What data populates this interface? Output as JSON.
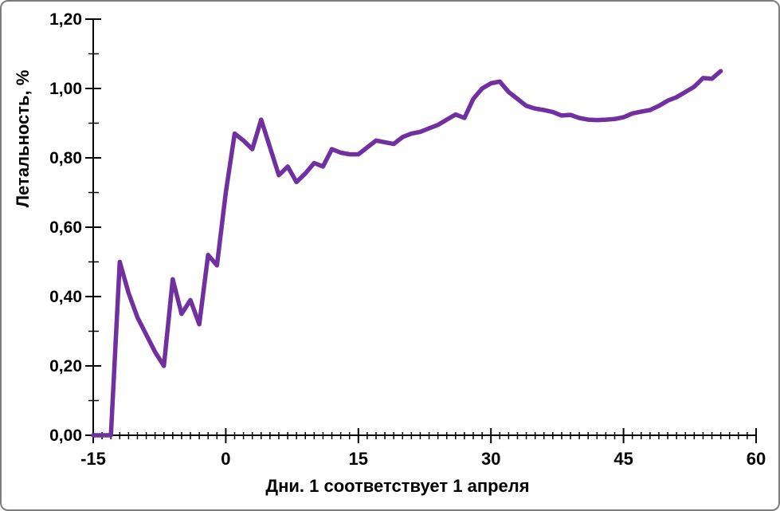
{
  "chart_data": {
    "type": "line",
    "title": "",
    "xlabel": "Дни. 1 соответствует 1 апреля",
    "ylabel": "Летальность, %",
    "series_name": "Летальность, %",
    "xlim": [
      -15,
      60
    ],
    "ylim": [
      0,
      1.2
    ],
    "x_ticks": [
      -15,
      0,
      15,
      30,
      45,
      60
    ],
    "x_tick_labels": [
      "-15",
      "0",
      "15",
      "30",
      "45",
      "60"
    ],
    "x_minor_step": 1,
    "y_ticks": [
      0,
      0.2,
      0.4,
      0.6,
      0.8,
      1.0,
      1.2
    ],
    "y_tick_labels": [
      "0,00",
      "0,20",
      "0,40",
      "0,60",
      "0,80",
      "1,00",
      "1,20"
    ],
    "y_minor_step": 0.1,
    "grid": false,
    "legend_position": "none",
    "line_color": "#7030A0",
    "line_width": 5.5,
    "axis_color": "#000000",
    "background_color": "#FFFFFF",
    "border_color": "#7D7D7D",
    "x": [
      -15,
      -14,
      -13,
      -12,
      -11,
      -10,
      -9,
      -8,
      -7,
      -6,
      -5,
      -4,
      -3,
      -2,
      -1,
      0,
      1,
      2,
      3,
      4,
      5,
      6,
      7,
      8,
      9,
      10,
      11,
      12,
      13,
      14,
      15,
      16,
      17,
      18,
      19,
      20,
      21,
      22,
      23,
      24,
      25,
      26,
      27,
      28,
      29,
      30,
      31,
      32,
      33,
      34,
      35,
      36,
      37,
      38,
      39,
      40,
      41,
      42,
      43,
      44,
      45,
      46,
      47,
      48,
      49,
      50,
      51,
      52,
      53,
      54,
      55,
      56
    ],
    "y": [
      0.0,
      0.0,
      0.0,
      0.5,
      0.41,
      0.34,
      0.29,
      0.24,
      0.2,
      0.45,
      0.35,
      0.39,
      0.32,
      0.52,
      0.49,
      0.7,
      0.87,
      0.85,
      0.825,
      0.91,
      0.83,
      0.75,
      0.775,
      0.73,
      0.755,
      0.785,
      0.775,
      0.825,
      0.815,
      0.81,
      0.81,
      0.83,
      0.85,
      0.845,
      0.84,
      0.86,
      0.87,
      0.875,
      0.885,
      0.895,
      0.91,
      0.925,
      0.915,
      0.97,
      1.0,
      1.015,
      1.02,
      0.99,
      0.97,
      0.95,
      0.942,
      0.938,
      0.932,
      0.922,
      0.924,
      0.915,
      0.91,
      0.909,
      0.91,
      0.912,
      0.917,
      0.928,
      0.933,
      0.938,
      0.95,
      0.965,
      0.975,
      0.99,
      1.005,
      1.03,
      1.028,
      1.05
    ]
  }
}
